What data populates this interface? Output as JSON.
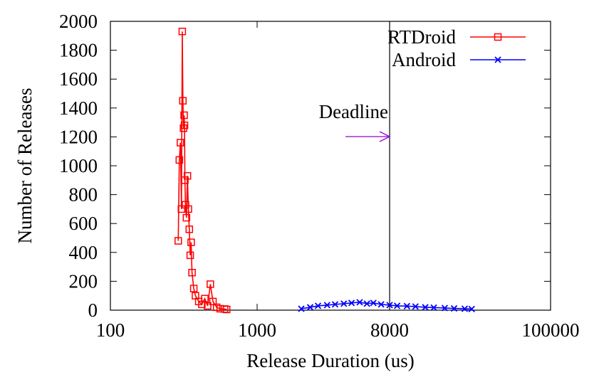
{
  "chart_data": {
    "type": "line",
    "xlabel": "Release Duration (us)",
    "ylabel": "Number of Releases",
    "xscale": "log",
    "xlim": [
      100,
      100000
    ],
    "xticks": [
      100,
      1000,
      8000,
      100000
    ],
    "ylim": [
      0,
      2000
    ],
    "yticks": [
      0,
      200,
      400,
      600,
      800,
      1000,
      1200,
      1400,
      1600,
      1800,
      2000
    ],
    "legend": "top-right",
    "deadline": {
      "label": "Deadline",
      "x": 8000,
      "color": "#9400d3"
    },
    "series": [
      {
        "name": "RTDroid",
        "color": "#ff0000",
        "marker": "square",
        "x": [
          290,
          295,
          300,
          305,
          309,
          312,
          315,
          318,
          320,
          322,
          325,
          330,
          335,
          340,
          345,
          350,
          355,
          360,
          370,
          380,
          400,
          420,
          440,
          460,
          480,
          500,
          530,
          560,
          600,
          620
        ],
        "values": [
          480,
          1040,
          1160,
          700,
          1930,
          1450,
          1260,
          1350,
          1280,
          900,
          730,
          640,
          930,
          700,
          560,
          380,
          470,
          260,
          150,
          100,
          60,
          40,
          80,
          30,
          180,
          60,
          20,
          10,
          8,
          5
        ]
      },
      {
        "name": "Android",
        "color": "#0000ff",
        "marker": "cross",
        "x": [
          2000,
          2300,
          2600,
          3000,
          3400,
          3900,
          4400,
          5000,
          5600,
          6200,
          7000,
          8000,
          9000,
          10500,
          12000,
          14000,
          16000,
          19000,
          22000,
          26000,
          29000
        ],
        "values": [
          10,
          20,
          30,
          35,
          40,
          45,
          50,
          55,
          45,
          50,
          40,
          35,
          30,
          28,
          25,
          20,
          18,
          15,
          12,
          10,
          8
        ]
      }
    ]
  }
}
